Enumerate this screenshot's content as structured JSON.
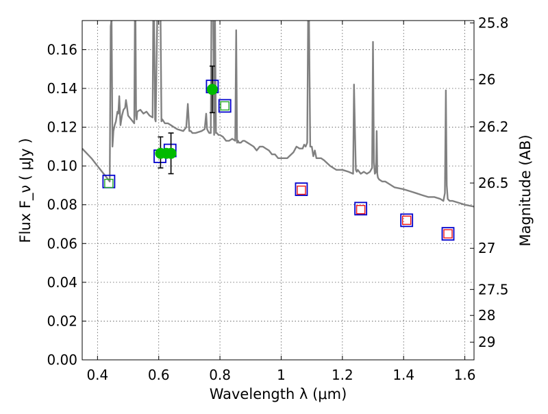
{
  "chart_data": {
    "type": "scatter",
    "xlabel": "Wavelength  λ (μm)",
    "ylabel": "Flux  F_ν  ( μJy )",
    "y2label": "Magnitude (AB)",
    "xlim": [
      0.35,
      1.63
    ],
    "ylim": [
      0.0,
      0.175
    ],
    "grid": true,
    "x_ticks": [
      0.4,
      0.6,
      0.8,
      1.0,
      1.2,
      1.4,
      1.6
    ],
    "x_tick_labels": [
      "0.4",
      "0.6",
      "0.8",
      "1",
      "1.2",
      "1.4",
      "1.6"
    ],
    "y_ticks": [
      0.0,
      0.02,
      0.04,
      0.06,
      0.08,
      0.1,
      0.12,
      0.14,
      0.16
    ],
    "y_tick_labels": [
      "0.00",
      "0.02",
      "0.04",
      "0.06",
      "0.08",
      "0.10",
      "0.12",
      "0.14",
      "0.16"
    ],
    "y2_tick_labels": [
      "25.8",
      "26",
      "26.2",
      "26.5",
      "27",
      "27.5",
      "28",
      "29"
    ],
    "y2_tick_values_ab": [
      25.8,
      26,
      26.2,
      26.5,
      27,
      27.5,
      28,
      29
    ],
    "colors": {
      "spectrum": "#808080",
      "model_box": "#0000cc",
      "optical_box": "#22aa22",
      "nir_box": "#ee1111",
      "observed": "#00bb00",
      "errorbar": "#000000",
      "grid": "#555555"
    },
    "series": [
      {
        "kind": "line",
        "x": [
          0.35,
          0.38,
          0.4,
          0.42,
          0.43,
          0.44,
          0.443,
          0.446,
          0.449,
          0.452,
          0.456,
          0.46,
          0.465,
          0.468,
          0.471,
          0.475,
          0.48,
          0.485,
          0.49,
          0.493,
          0.496,
          0.5,
          0.51,
          0.52,
          0.522,
          0.524,
          0.526,
          0.528,
          0.53,
          0.54,
          0.55,
          0.56,
          0.57,
          0.58,
          0.582,
          0.585,
          0.588,
          0.59,
          0.595,
          0.6,
          0.603,
          0.606,
          0.609,
          0.612,
          0.616,
          0.62,
          0.63,
          0.64,
          0.65,
          0.66,
          0.68,
          0.69,
          0.695,
          0.7,
          0.705,
          0.71,
          0.72,
          0.74,
          0.75,
          0.755,
          0.758,
          0.761,
          0.765,
          0.77,
          0.772,
          0.775,
          0.778,
          0.781,
          0.784,
          0.787,
          0.79,
          0.795,
          0.8,
          0.81,
          0.82,
          0.83,
          0.84,
          0.85,
          0.853,
          0.856,
          0.859,
          0.862,
          0.868,
          0.875,
          0.88,
          0.89,
          0.9,
          0.91,
          0.92,
          0.93,
          0.94,
          0.95,
          0.96,
          0.97,
          0.98,
          0.99,
          1.0,
          1.02,
          1.04,
          1.05,
          1.06,
          1.07,
          1.075,
          1.08,
          1.085,
          1.088,
          1.091,
          1.095,
          1.1,
          1.105,
          1.11,
          1.115,
          1.12,
          1.13,
          1.14,
          1.16,
          1.18,
          1.2,
          1.22,
          1.235,
          1.238,
          1.241,
          1.244,
          1.247,
          1.25,
          1.26,
          1.27,
          1.28,
          1.29,
          1.297,
          1.3,
          1.303,
          1.306,
          1.31,
          1.312,
          1.314,
          1.316,
          1.32,
          1.33,
          1.34,
          1.35,
          1.37,
          1.4,
          1.42,
          1.44,
          1.46,
          1.48,
          1.5,
          1.52,
          1.53,
          1.535,
          1.538,
          1.541,
          1.544,
          1.55,
          1.56,
          1.58,
          1.6,
          1.63
        ],
        "y": [
          0.109,
          0.104,
          0.1,
          0.096,
          0.094,
          0.092,
          0.172,
          0.176,
          0.11,
          0.118,
          0.121,
          0.123,
          0.128,
          0.127,
          0.136,
          0.121,
          0.126,
          0.129,
          0.13,
          0.134,
          0.131,
          0.126,
          0.124,
          0.122,
          0.176,
          0.176,
          0.126,
          0.124,
          0.128,
          0.129,
          0.127,
          0.128,
          0.126,
          0.125,
          0.176,
          0.176,
          0.124,
          0.123,
          0.176,
          0.176,
          0.176,
          0.176,
          0.123,
          0.124,
          0.123,
          0.122,
          0.122,
          0.121,
          0.12,
          0.119,
          0.118,
          0.12,
          0.132,
          0.118,
          0.118,
          0.117,
          0.117,
          0.118,
          0.119,
          0.127,
          0.119,
          0.118,
          0.117,
          0.117,
          0.176,
          0.176,
          0.176,
          0.116,
          0.176,
          0.117,
          0.117,
          0.116,
          0.116,
          0.115,
          0.113,
          0.113,
          0.114,
          0.113,
          0.17,
          0.112,
          0.113,
          0.112,
          0.112,
          0.113,
          0.113,
          0.112,
          0.111,
          0.11,
          0.108,
          0.11,
          0.11,
          0.109,
          0.108,
          0.106,
          0.106,
          0.104,
          0.104,
          0.104,
          0.107,
          0.11,
          0.109,
          0.109,
          0.111,
          0.11,
          0.112,
          0.176,
          0.176,
          0.11,
          0.11,
          0.105,
          0.108,
          0.104,
          0.104,
          0.104,
          0.103,
          0.1,
          0.098,
          0.098,
          0.097,
          0.096,
          0.142,
          0.118,
          0.098,
          0.097,
          0.098,
          0.096,
          0.097,
          0.096,
          0.097,
          0.099,
          0.164,
          0.102,
          0.096,
          0.097,
          0.118,
          0.096,
          0.094,
          0.093,
          0.092,
          0.092,
          0.091,
          0.089,
          0.088,
          0.087,
          0.086,
          0.085,
          0.084,
          0.084,
          0.083,
          0.082,
          0.086,
          0.139,
          0.09,
          0.083,
          0.082,
          0.082,
          0.081,
          0.08,
          0.079
        ]
      },
      {
        "kind": "model_boxes",
        "x": [
          0.437,
          0.604,
          0.637,
          0.775,
          0.816,
          1.066,
          1.26,
          1.41,
          1.545
        ],
        "y": [
          0.092,
          0.105,
          0.108,
          0.141,
          0.131,
          0.088,
          0.078,
          0.072,
          0.065
        ]
      },
      {
        "kind": "optical_inner_boxes",
        "x": [
          0.437,
          0.816
        ],
        "y": [
          0.091,
          0.131
        ]
      },
      {
        "kind": "nir_inner_boxes",
        "x": [
          1.066,
          1.26,
          1.41,
          1.545
        ],
        "y": [
          0.0875,
          0.0775,
          0.072,
          0.065
        ]
      },
      {
        "kind": "observed",
        "x": [
          0.606,
          0.625,
          0.64,
          0.775
        ],
        "y": [
          0.1065,
          0.1065,
          0.1065,
          0.1395
        ],
        "err_low": [
          0.099,
          0.0,
          0.096,
          0.1275
        ],
        "err_high": [
          0.115,
          0.0,
          0.117,
          0.1515
        ]
      }
    ]
  }
}
